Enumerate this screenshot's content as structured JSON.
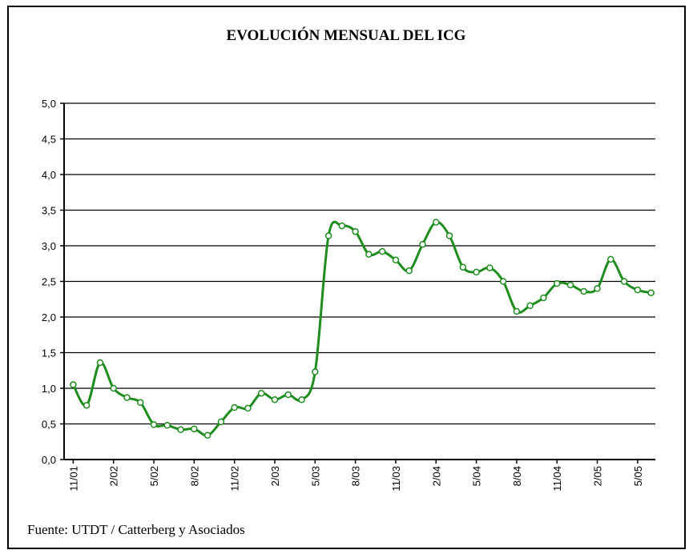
{
  "chart_data": {
    "type": "line",
    "title": "EVOLUCIÓN MENSUAL DEL ICG",
    "source": "Fuente: UTDT / Catterberg y Asociados",
    "categories": [
      "11/01",
      null,
      null,
      "2/02",
      null,
      null,
      "5/02",
      null,
      null,
      "8/02",
      null,
      null,
      "11/02",
      null,
      null,
      "2/03",
      null,
      null,
      "5/03",
      null,
      null,
      "8/03",
      null,
      null,
      "11/03",
      null,
      null,
      "2/04",
      null,
      null,
      "5/04",
      null,
      null,
      "8/04",
      null,
      null,
      "11/04",
      null,
      null,
      "2/05",
      null,
      null,
      "5/05",
      null
    ],
    "series": [
      {
        "color": "#1e8c1e",
        "values": [
          1.05,
          0.76,
          1.36,
          1.0,
          0.87,
          0.8,
          0.49,
          0.48,
          0.42,
          0.43,
          0.34,
          0.53,
          0.73,
          0.72,
          0.93,
          0.84,
          0.91,
          0.84,
          1.23,
          3.14,
          3.28,
          3.2,
          2.88,
          2.92,
          2.8,
          2.65,
          3.02,
          3.33,
          3.14,
          2.7,
          2.63,
          2.69,
          2.5,
          2.08,
          2.16,
          2.27,
          2.47,
          2.45,
          2.36,
          2.4,
          2.81,
          2.5,
          2.38,
          2.34
        ]
      }
    ],
    "ylim": [
      0,
      5
    ],
    "yticks": [
      {
        "value": 0,
        "label": "0,0"
      },
      {
        "value": 0.5,
        "label": "0,5"
      },
      {
        "value": 1,
        "label": "1,0"
      },
      {
        "value": 1.5,
        "label": "1,5"
      },
      {
        "value": 2,
        "label": "2,0"
      },
      {
        "value": 2.5,
        "label": "2,5"
      },
      {
        "value": 3,
        "label": "3,0"
      },
      {
        "value": 3.5,
        "label": "3,5"
      },
      {
        "value": 4,
        "label": "4,0"
      },
      {
        "value": 4.5,
        "label": "4,5"
      },
      {
        "value": 5,
        "label": "5,0"
      }
    ],
    "grid": true
  }
}
